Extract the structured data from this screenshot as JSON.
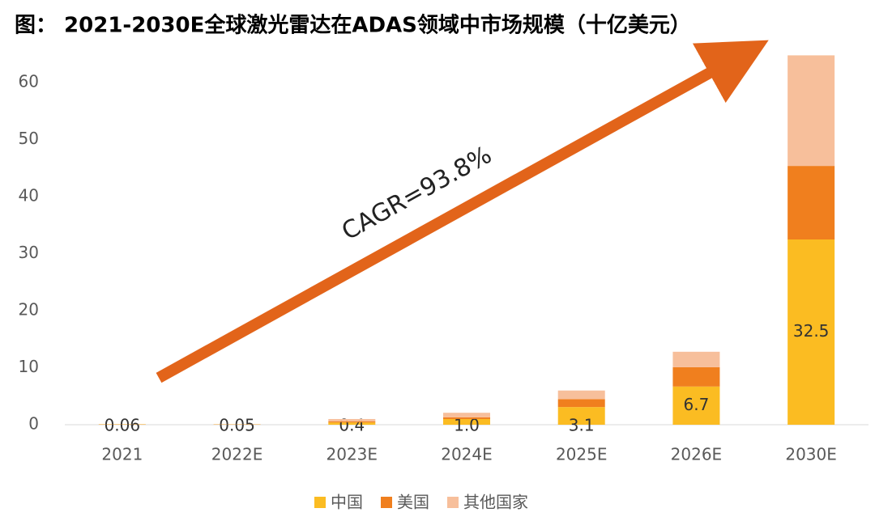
{
  "chart_data": {
    "type": "stacked_bar",
    "title": "图： 2021-2030E全球激光雷达在ADAS领域中市场规模（十亿美元）",
    "annotation": "CAGR=93.8%",
    "categories": [
      "2021",
      "2022E",
      "2023E",
      "2024E",
      "2025E",
      "2026E",
      "2030E"
    ],
    "series": [
      {
        "name": "中国",
        "color": "#FBBC22",
        "values": [
          0.06,
          0.05,
          0.4,
          1.0,
          3.1,
          6.7,
          32.5
        ],
        "value_labels": [
          "0.06",
          "0.05",
          "0.4",
          "1.0",
          "3.1",
          "6.7",
          "32.5"
        ]
      },
      {
        "name": "美国",
        "color": "#F07F1E",
        "values": [
          0.02,
          0.02,
          0.2,
          0.3,
          1.4,
          3.4,
          12.9
        ]
      },
      {
        "name": "其他国家",
        "color": "#F7BF9B",
        "values": [
          0.02,
          0.02,
          0.4,
          0.8,
          1.5,
          2.7,
          19.4
        ]
      }
    ],
    "ylim": [
      0,
      65
    ],
    "yticks": [
      0,
      10,
      20,
      30,
      40,
      50,
      60
    ],
    "legend": "bottom"
  }
}
